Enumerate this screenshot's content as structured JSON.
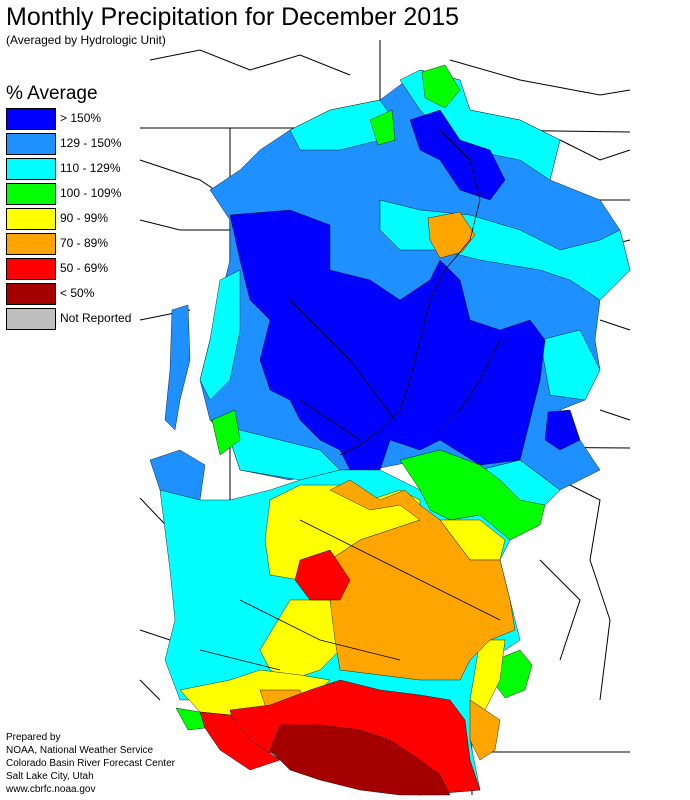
{
  "title": "Monthly Precipitation for December 2015",
  "subtitle": "(Averaged by Hydrologic Unit)",
  "legend": {
    "title": "% Average",
    "items": [
      {
        "label": "> 150%",
        "color": "#0000ff"
      },
      {
        "label": "129 - 150%",
        "color": "#1e90ff"
      },
      {
        "label": "110 - 129%",
        "color": "#00ffff"
      },
      {
        "label": "100 - 109%",
        "color": "#00ff00"
      },
      {
        "label": "90 - 99%",
        "color": "#ffff00"
      },
      {
        "label": "70 - 89%",
        "color": "#ffa500"
      },
      {
        "label": "50 - 69%",
        "color": "#ff0000"
      },
      {
        "label": "< 50%",
        "color": "#a50000"
      },
      {
        "label": "Not Reported",
        "color": "#bebebe"
      }
    ]
  },
  "credits": [
    "Prepared by",
    "NOAA, National Weather Service",
    "Colorado Basin River Forecast Center",
    "Salt Lake City, Utah",
    "www.cbrfc.noaa.gov"
  ]
}
